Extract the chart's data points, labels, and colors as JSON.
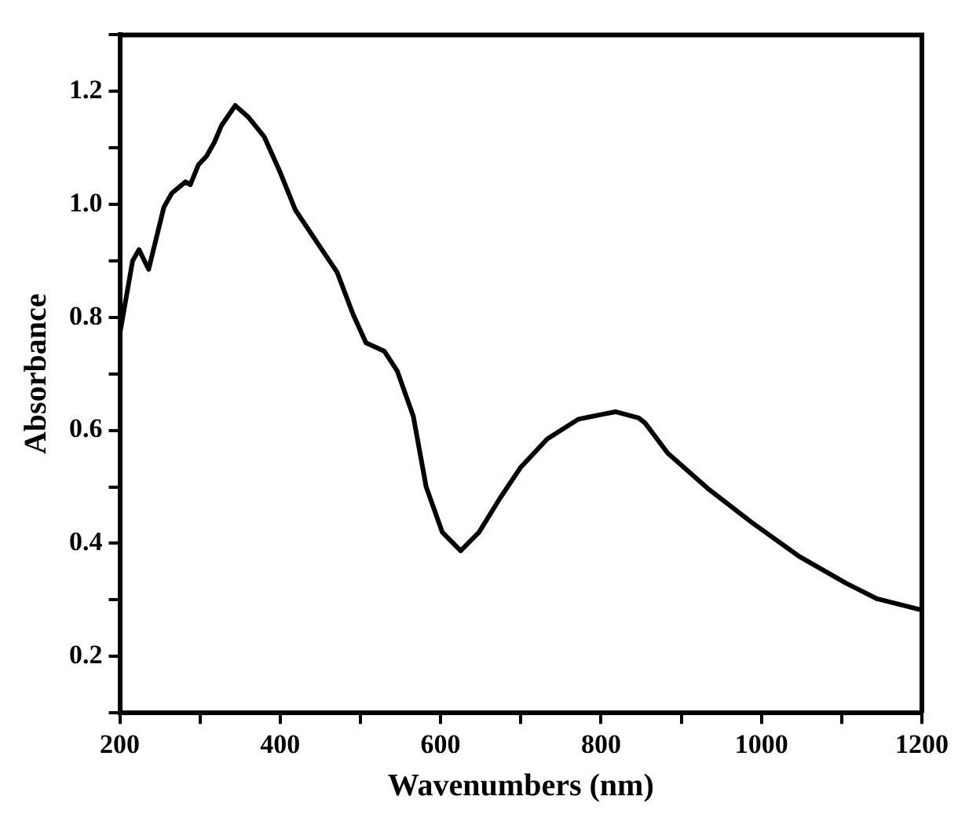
{
  "chart_data": {
    "type": "line",
    "xlabel": "Wavenumbers (nm)",
    "ylabel": "Absorbance",
    "xlim": [
      200,
      1200
    ],
    "ylim": [
      0.1,
      1.3
    ],
    "xticks": [
      200,
      {
        "value": 300,
        "label": null
      },
      400,
      {
        "value": 500,
        "label": null
      },
      600,
      {
        "value": 700,
        "label": null
      },
      800,
      {
        "value": 900,
        "label": null
      },
      1000,
      {
        "value": 1100,
        "label": null
      },
      1200
    ],
    "yticks": [
      {
        "value": 0.1,
        "label": null
      },
      0.2,
      {
        "value": 0.3,
        "label": null
      },
      0.4,
      {
        "value": 0.5,
        "label": null
      },
      0.6,
      {
        "value": 0.7,
        "label": null
      },
      0.8,
      {
        "value": 0.9,
        "label": null
      },
      {
        "value": 1.0,
        "label": "1.0"
      },
      {
        "value": 1.1,
        "label": null
      },
      1.2,
      {
        "value": 1.3,
        "label": null
      }
    ],
    "grid": false,
    "legend": false,
    "marker": "none",
    "line_style": "solid",
    "series": [
      {
        "color": "#000000",
        "x": [
          200,
          216,
          224,
          236,
          255,
          265,
          282,
          288,
          298,
          308,
          318,
          327,
          344,
          360,
          380,
          399,
          419,
          452,
          471,
          491,
          507,
          530,
          546,
          566,
          582,
          602,
          625,
          648,
          674,
          700,
          733,
          772,
          818,
          847,
          855,
          883,
          935,
          988,
          1046,
          1105,
          1144,
          1200
        ],
        "values": [
          0.77,
          0.9,
          0.92,
          0.885,
          0.995,
          1.02,
          1.04,
          1.035,
          1.07,
          1.085,
          1.11,
          1.14,
          1.175,
          1.155,
          1.12,
          1.06,
          0.99,
          0.92,
          0.88,
          0.805,
          0.755,
          0.74,
          0.705,
          0.625,
          0.5,
          0.42,
          0.387,
          0.42,
          0.48,
          0.535,
          0.585,
          0.62,
          0.633,
          0.622,
          0.613,
          0.56,
          0.495,
          0.437,
          0.378,
          0.33,
          0.302,
          0.282
        ]
      }
    ]
  }
}
